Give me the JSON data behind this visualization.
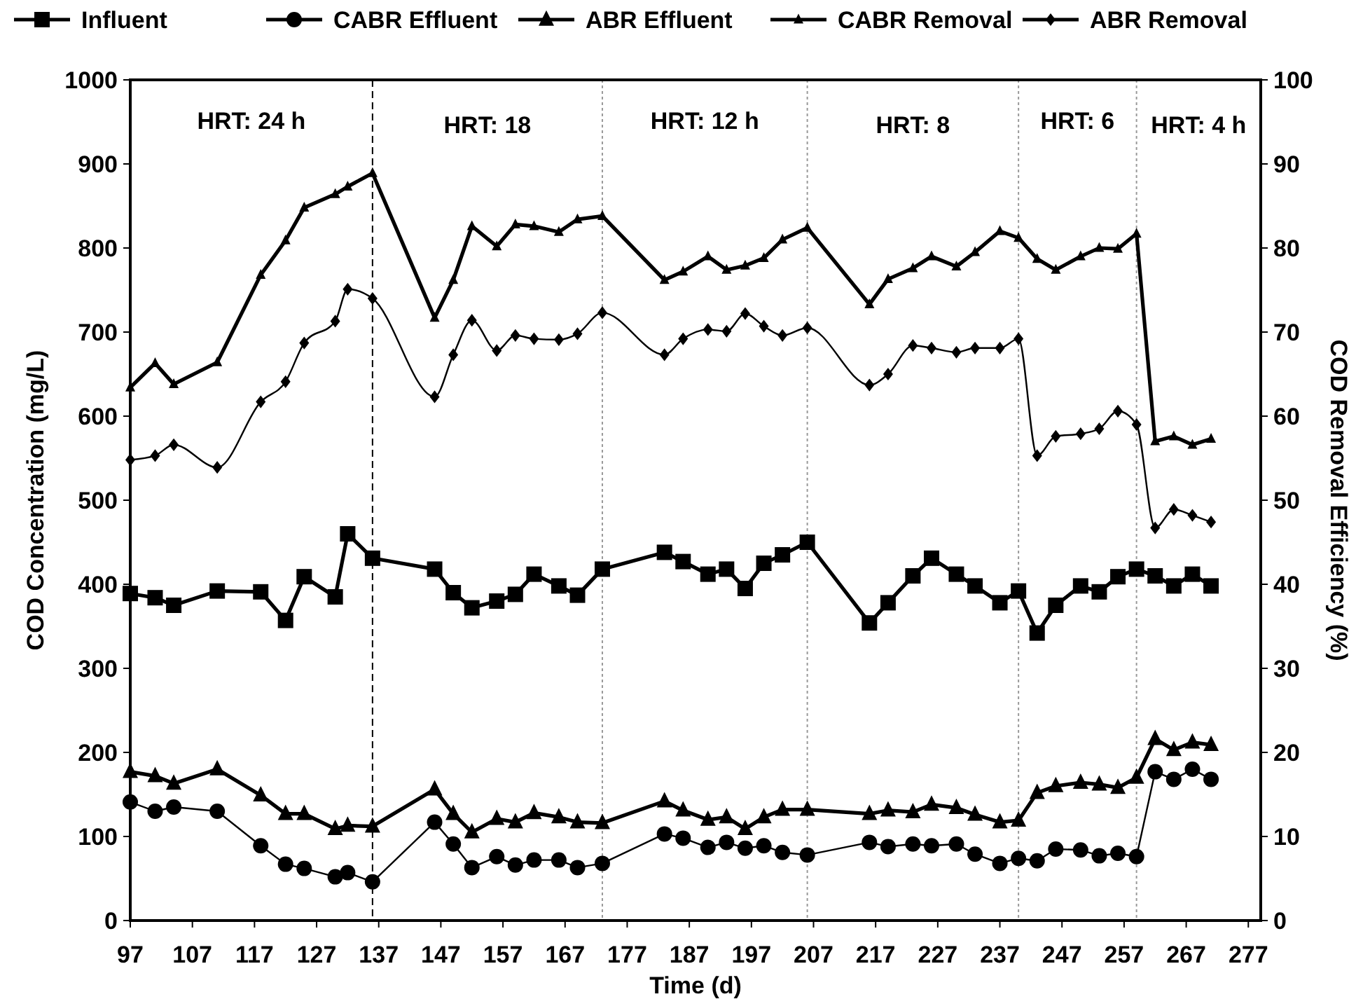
{
  "chart_data": {
    "type": "line",
    "xlabel": "Time (d)",
    "ylabel": "COD Concentration (mg/L)",
    "y2label": "COD Removal Efficiency (%)",
    "x": [
      97,
      101,
      104,
      111,
      118,
      122,
      125,
      130,
      132,
      136,
      146,
      149,
      152,
      156,
      159,
      162,
      166,
      169,
      173,
      183,
      186,
      190,
      193,
      196,
      199,
      202,
      206,
      216,
      219,
      223,
      226,
      230,
      233,
      237,
      240,
      243,
      246,
      250,
      253,
      256,
      259,
      262,
      265,
      268,
      271
    ],
    "xlim": [
      97,
      279
    ],
    "xticks": [
      97,
      107,
      117,
      127,
      137,
      147,
      157,
      167,
      177,
      187,
      197,
      207,
      217,
      227,
      237,
      247,
      257,
      267,
      277
    ],
    "ylim": [
      0,
      1000
    ],
    "yticks": [
      0,
      100,
      200,
      300,
      400,
      500,
      600,
      700,
      800,
      900,
      1000
    ],
    "y2lim": [
      0,
      100
    ],
    "y2ticks": [
      0,
      10,
      20,
      30,
      40,
      50,
      60,
      70,
      80,
      90,
      100
    ],
    "legend": "top",
    "grid": false,
    "series": [
      {
        "name": "Influent",
        "color": "#000000",
        "marker": "square",
        "values": [
          389,
          384,
          375,
          392,
          391,
          357,
          409,
          385,
          460,
          431,
          418,
          390,
          372,
          380,
          388,
          412,
          398,
          387,
          418,
          438,
          427,
          412,
          418,
          395,
          425,
          435,
          450,
          354,
          378,
          410,
          431,
          412,
          398,
          378,
          392,
          342,
          375,
          398,
          391,
          409,
          418,
          410,
          398,
          412,
          398
        ]
      },
      {
        "name": "CABR Effluent",
        "color": "#000000",
        "marker": "circle",
        "values": [
          141,
          130,
          135,
          130,
          89,
          67,
          62,
          52,
          57,
          46,
          117,
          91,
          63,
          76,
          66,
          72,
          72,
          63,
          68,
          103,
          98,
          87,
          93,
          86,
          89,
          81,
          78,
          93,
          88,
          91,
          89,
          91,
          79,
          68,
          74,
          71,
          85,
          84,
          77,
          80,
          76,
          177,
          168,
          180,
          168
        ]
      },
      {
        "name": "ABR Effluent",
        "color": "#000000",
        "marker": "triangle",
        "values": [
          177,
          172,
          163,
          180,
          149,
          127,
          127,
          109,
          113,
          112,
          156,
          127,
          105,
          121,
          117,
          128,
          123,
          117,
          116,
          142,
          131,
          120,
          123,
          109,
          123,
          132,
          132,
          127,
          131,
          129,
          138,
          134,
          126,
          117,
          119,
          152,
          160,
          164,
          162,
          158,
          170,
          216,
          203,
          212,
          209
        ]
      },
      {
        "name": "CABR Removal",
        "color": "#000000",
        "marker": "triangle",
        "axis": "y2",
        "values": [
          63.4,
          66.3,
          63.8,
          66.4,
          76.8,
          80.9,
          84.8,
          86.4,
          87.3,
          88.9,
          71.7,
          76.2,
          82.6,
          80.2,
          82.8,
          82.6,
          81.9,
          83.4,
          83.8,
          76.2,
          77.2,
          79,
          77.4,
          77.9,
          78.8,
          81,
          82.4,
          73.3,
          76.3,
          77.6,
          79,
          77.8,
          79.5,
          82,
          81.2,
          78.7,
          77.4,
          79,
          80,
          79.9,
          81.7,
          57,
          57.6,
          56.6,
          57.3
        ]
      },
      {
        "name": "ABR Removal",
        "color": "#000000",
        "marker": "diamond",
        "axis": "y2",
        "values": [
          54.8,
          55.3,
          56.6,
          53.9,
          61.7,
          64.1,
          68.7,
          71.3,
          75.1,
          74,
          62.3,
          67.3,
          71.4,
          67.8,
          69.6,
          69.2,
          69.1,
          69.8,
          72.3,
          67.3,
          69.2,
          70.3,
          70.1,
          72.2,
          70.7,
          69.6,
          70.5,
          63.7,
          65,
          68.4,
          68.1,
          67.6,
          68.1,
          68.1,
          69.2,
          55.3,
          57.6,
          57.9,
          58.5,
          60.6,
          59,
          46.7,
          48.9,
          48.2,
          47.4
        ]
      }
    ],
    "ref_lines": [
      {
        "axis": "x",
        "value": 136,
        "color": "#000000",
        "line_style": "dashed"
      },
      {
        "axis": "x",
        "value": 173,
        "color": "#999999",
        "line_style": "dotted"
      },
      {
        "axis": "x",
        "value": 206,
        "color": "#999999",
        "line_style": "dotted"
      },
      {
        "axis": "x",
        "value": 240,
        "color": "#999999",
        "line_style": "dotted"
      },
      {
        "axis": "x",
        "value": 259,
        "color": "#999999",
        "line_style": "dotted"
      }
    ],
    "annotations": [
      "HRT: 24 h",
      "HRT: 18",
      "HRT: 12 h",
      "HRT: 8",
      "HRT: 6",
      "HRT: 4 h"
    ]
  }
}
